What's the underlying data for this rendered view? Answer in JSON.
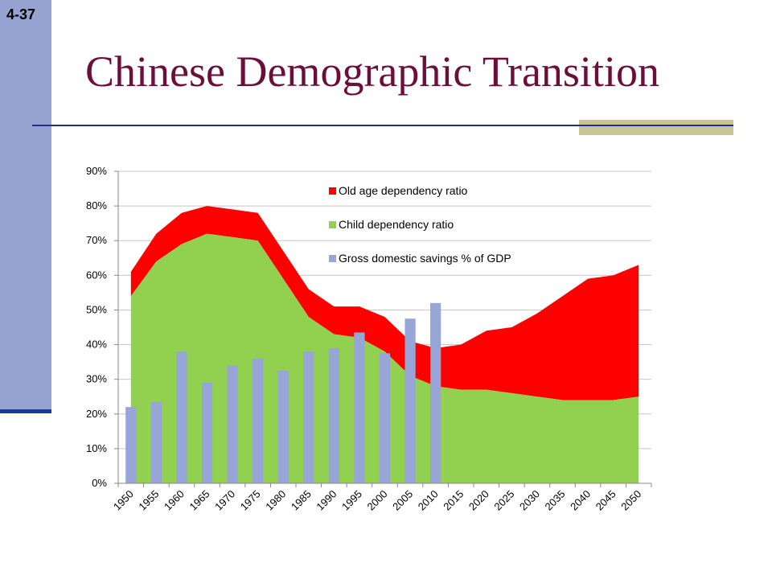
{
  "slide": {
    "number": "4-37",
    "title": "Chinese Demographic Transition"
  },
  "colors": {
    "old_age": "#ff0000",
    "child": "#92d050",
    "savings": "#97a6d6",
    "title": "#6b0f3a",
    "sidebar": "#96a3d1",
    "accent": "#c9c596"
  },
  "chart_data": {
    "type": "area",
    "title": "",
    "xlabel": "",
    "ylabel": "",
    "ylim": [
      0,
      90
    ],
    "yticks": [
      "0%",
      "10%",
      "20%",
      "30%",
      "40%",
      "50%",
      "60%",
      "70%",
      "80%",
      "90%"
    ],
    "grid": true,
    "legend_position": "top-right",
    "categories": [
      "1950",
      "1955",
      "1960",
      "1965",
      "1970",
      "1975",
      "1980",
      "1985",
      "1990",
      "1995",
      "2000",
      "2005",
      "2010",
      "2015",
      "2020",
      "2025",
      "2030",
      "2035",
      "2040",
      "2045",
      "2050"
    ],
    "series": [
      {
        "name": "Old age dependency ratio",
        "kind": "stacked-area",
        "values": [
          7,
          8,
          9,
          8,
          8,
          8,
          8,
          8,
          8,
          9,
          10,
          10,
          11,
          13,
          17,
          19,
          24,
          30,
          35,
          36,
          38
        ]
      },
      {
        "name": "Child dependency ratio",
        "kind": "stacked-area",
        "values": [
          54,
          64,
          69,
          72,
          71,
          70,
          59,
          48,
          43,
          42,
          38,
          31,
          28,
          27,
          27,
          26,
          25,
          24,
          24,
          24,
          25
        ]
      },
      {
        "name": "Gross domestic savings % of GDP",
        "kind": "bar",
        "values": [
          22,
          23.5,
          38,
          29,
          34,
          36,
          32.5,
          38,
          39,
          43.5,
          37.5,
          47.5,
          52,
          null,
          null,
          null,
          null,
          null,
          null,
          null,
          null
        ]
      }
    ]
  }
}
